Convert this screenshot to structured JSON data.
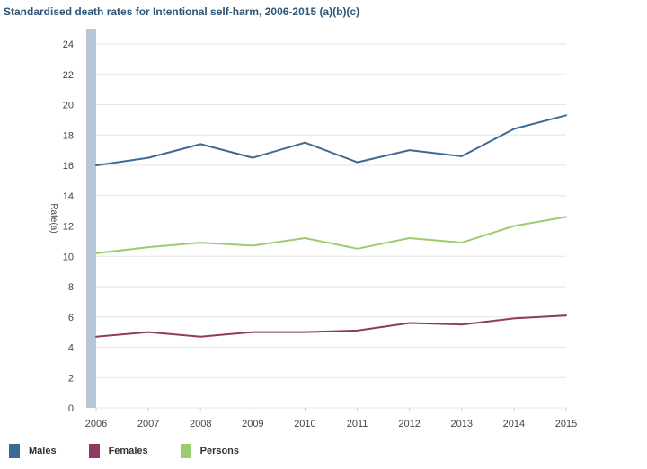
{
  "chart_data": {
    "type": "line",
    "title": "Standardised death rates for Intentional self-harm, 2006-2015 (a)(b)(c)",
    "ylabel": "Rate(a)",
    "xlabel": "",
    "x": [
      "2006",
      "2007",
      "2008",
      "2009",
      "2010",
      "2011",
      "2012",
      "2013",
      "2014",
      "2015"
    ],
    "ylim": [
      0,
      24
    ],
    "yticks": [
      "0",
      "2",
      "4",
      "6",
      "8",
      "10",
      "12",
      "14",
      "16",
      "18",
      "20",
      "22",
      "24"
    ],
    "grid": true,
    "legend_position": "bottom-left",
    "series": [
      {
        "name": "Males",
        "color": "#3d6a94",
        "values": [
          16.0,
          16.5,
          17.4,
          16.5,
          17.5,
          16.2,
          17.0,
          16.6,
          18.4,
          19.3
        ]
      },
      {
        "name": "Females",
        "color": "#8e3a64",
        "values": [
          4.7,
          5.0,
          4.7,
          5.0,
          5.0,
          5.1,
          5.6,
          5.5,
          5.9,
          6.1
        ]
      },
      {
        "name": "Persons",
        "color": "#9ccc6e",
        "values": [
          10.2,
          10.6,
          10.9,
          10.7,
          11.2,
          10.5,
          11.2,
          10.9,
          12.0,
          12.6
        ]
      }
    ]
  }
}
